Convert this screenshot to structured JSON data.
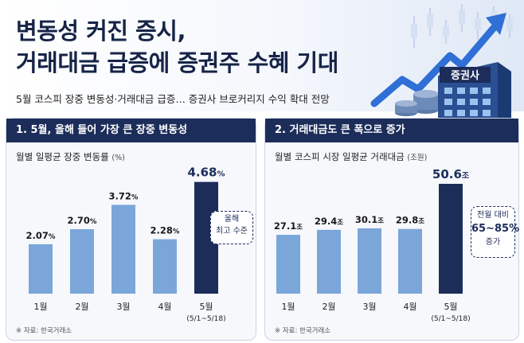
{
  "header": {
    "title_line1": "변동성 커진 증시,",
    "title_line2": "거래대금 급증에 증권주 수혜 기대",
    "subtitle": "5월 코스피 장중 변동성·거래대금 급증… 증권사 브로커리지 수익 확대 전망",
    "building_sign": "증권사"
  },
  "colors": {
    "navy": "#1c2d5a",
    "bar_light": "#7aa6da",
    "highlight": "#1c2d5a"
  },
  "panels": [
    {
      "heading": "1. 5월, 올해 들어 가장 큰 장중 변동성",
      "chart_title": "월별 일평균 장중 변동률",
      "chart_unit": "(%)",
      "callout_line1": "올해",
      "callout_line2": "최고 수준",
      "source": "※ 자료: 한국거래소"
    },
    {
      "heading": "2. 거래대금도 큰 폭으로 증가",
      "chart_title": "월별 코스피 시장 일평균 거래대금",
      "chart_unit": "(조원)",
      "callout_line1": "전월 대비",
      "callout_line2": "65~85%",
      "callout_line3": "증가",
      "source": "※ 자료: 한국거래소"
    }
  ],
  "chart_data": [
    {
      "type": "bar",
      "title": "월별 일평균 장중 변동률 (%)",
      "categories": [
        "1월",
        "2월",
        "3월",
        "4월",
        "5월"
      ],
      "category_sublabels": [
        "",
        "",
        "",
        "",
        "(5/1~5/18)"
      ],
      "values": [
        2.07,
        2.7,
        3.72,
        2.28,
        4.68
      ],
      "labels": [
        "2.07",
        "2.70",
        "3.72",
        "2.28",
        "4.68"
      ],
      "value_suffix": "%",
      "highlight_index": 4,
      "ylim": [
        0,
        5
      ]
    },
    {
      "type": "bar",
      "title": "월별 코스피 시장 일평균 거래대금 (조원)",
      "categories": [
        "1월",
        "2월",
        "3월",
        "4월",
        "5월"
      ],
      "category_sublabels": [
        "",
        "",
        "",
        "",
        "(5/1~5/18)"
      ],
      "values": [
        27.1,
        29.4,
        30.1,
        29.8,
        50.6
      ],
      "labels": [
        "27.1",
        "29.4",
        "30.1",
        "29.8",
        "50.6"
      ],
      "value_suffix": "조",
      "highlight_index": 4,
      "ylim": [
        0,
        55
      ]
    }
  ]
}
